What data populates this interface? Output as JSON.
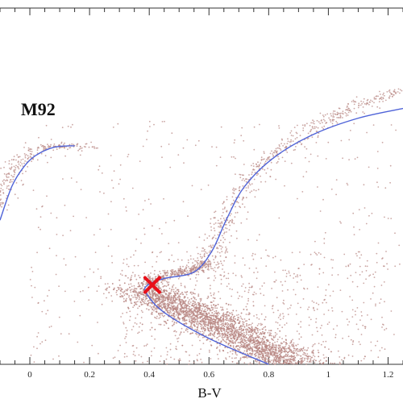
{
  "chart_data": {
    "type": "scatter",
    "title": "",
    "annotation": "M92",
    "xlabel": "B-V",
    "ylabel": "",
    "xlim": [
      -0.1,
      1.25
    ],
    "ylim": [
      -4.0,
      7.0
    ],
    "x_ticks": [
      0,
      0.2,
      0.4,
      0.6,
      0.8,
      1,
      1.2
    ],
    "x_tick_labels": [
      "0",
      "0.2",
      "0.4",
      "0.6",
      "0.8",
      "1",
      "1.2"
    ],
    "grid": false,
    "legend": "none",
    "colors": {
      "points": "#b98a85",
      "isochrone": "#4f63d8",
      "turnoff": "#e8101a",
      "axis": "#333333"
    },
    "series": [
      {
        "kind": "points",
        "clouds": [
          {
            "branch": "main-sequence",
            "count": 3600,
            "path": [
              [
                0.37,
                4.6
              ],
              [
                0.42,
                4.9
              ],
              [
                0.5,
                5.25
              ],
              [
                0.6,
                5.65
              ],
              [
                0.7,
                6.1
              ],
              [
                0.8,
                6.6
              ],
              [
                0.88,
                7.0
              ]
            ],
            "spread": 0.055,
            "tail": 0.13
          },
          {
            "branch": "subgiant",
            "count": 380,
            "path": [
              [
                0.4,
                4.5
              ],
              [
                0.48,
                4.2
              ],
              [
                0.56,
                4.05
              ],
              [
                0.6,
                3.8
              ]
            ],
            "spread": 0.018,
            "tail": 0.06
          },
          {
            "branch": "red-giant",
            "count": 520,
            "path": [
              [
                0.6,
                3.8
              ],
              [
                0.63,
                3.1
              ],
              [
                0.66,
                2.3
              ],
              [
                0.72,
                1.4
              ],
              [
                0.82,
                0.5
              ],
              [
                0.95,
                -0.3
              ],
              [
                1.1,
                -1.0
              ],
              [
                1.25,
                -1.5
              ]
            ],
            "spread": 0.022,
            "tail": 0.06
          },
          {
            "branch": "horizontal",
            "count": 240,
            "path": [
              [
                -0.1,
                2.2
              ],
              [
                -0.07,
                1.3
              ],
              [
                -0.04,
                0.8
              ],
              [
                0.0,
                0.5
              ],
              [
                0.06,
                0.25
              ],
              [
                0.12,
                0.25
              ],
              [
                0.2,
                0.3
              ]
            ],
            "spread": 0.02,
            "tail": 0.05
          },
          {
            "branch": "field",
            "count": 950,
            "range_x": [
              0.0,
              1.25
            ],
            "range_y": [
              -0.5,
              7.0
            ]
          }
        ]
      },
      {
        "kind": "isochrone",
        "points": [
          [
            0.8,
            7.0
          ],
          [
            0.6,
            6.2
          ],
          [
            0.45,
            5.4
          ],
          [
            0.39,
            4.8
          ],
          [
            0.395,
            4.55
          ],
          [
            0.45,
            4.35
          ],
          [
            0.55,
            4.15
          ],
          [
            0.61,
            3.5
          ],
          [
            0.66,
            2.5
          ],
          [
            0.72,
            1.5
          ],
          [
            0.82,
            0.6
          ],
          [
            0.95,
            -0.1
          ],
          [
            1.1,
            -0.6
          ],
          [
            1.25,
            -0.9
          ]
        ]
      },
      {
        "kind": "isochrone",
        "points": [
          [
            -0.1,
            2.55
          ],
          [
            -0.06,
            1.5
          ],
          [
            -0.02,
            0.9
          ],
          [
            0.02,
            0.55
          ],
          [
            0.08,
            0.3
          ],
          [
            0.15,
            0.25
          ]
        ]
      }
    ],
    "turnoff": {
      "x": 0.41,
      "y": 4.55
    }
  }
}
